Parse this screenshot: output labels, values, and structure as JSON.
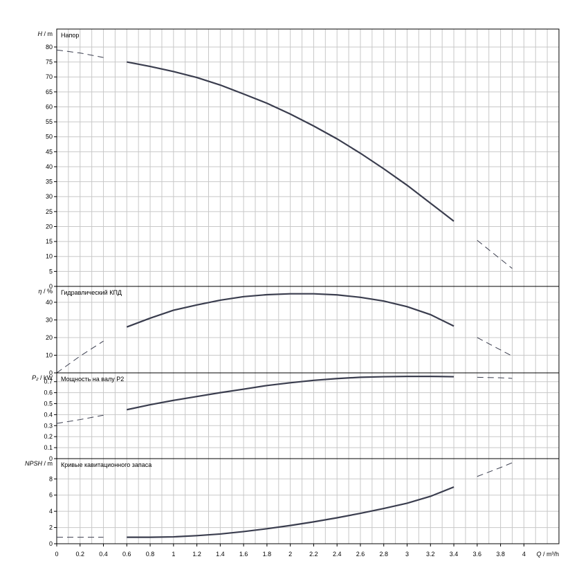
{
  "chart_data": {
    "type": "line",
    "x_axis": {
      "label_var": "Q",
      "label_unit": "m³/h",
      "range": [
        0,
        4.3
      ],
      "tick_labels": [
        "0",
        "0.2",
        "0.4",
        "0.6",
        "0.8",
        "1",
        "1.2",
        "1.4",
        "1.6",
        "1.8",
        "2",
        "2.2",
        "2.4",
        "2.6",
        "2.8",
        "3",
        "3.2",
        "3.4",
        "3.6",
        "3.8",
        "4"
      ],
      "grid_step": 0.1
    },
    "panels": [
      {
        "id": "head",
        "title": "Напор",
        "ylabel_var": "H",
        "ylabel_unit": "m",
        "ylim": [
          0,
          86
        ],
        "y_ticks": [
          0,
          5,
          10,
          15,
          20,
          25,
          30,
          35,
          40,
          45,
          50,
          55,
          60,
          65,
          70,
          75,
          80
        ],
        "solid_range": [
          0.5,
          3.5
        ],
        "points": [
          [
            0,
            79
          ],
          [
            0.2,
            78
          ],
          [
            0.4,
            76.5
          ],
          [
            0.6,
            75
          ],
          [
            0.8,
            73.5
          ],
          [
            1.0,
            71.8
          ],
          [
            1.2,
            69.8
          ],
          [
            1.4,
            67.3
          ],
          [
            1.6,
            64.3
          ],
          [
            1.8,
            61.2
          ],
          [
            2.0,
            57.6
          ],
          [
            2.2,
            53.6
          ],
          [
            2.4,
            49.3
          ],
          [
            2.6,
            44.5
          ],
          [
            2.8,
            39.3
          ],
          [
            3.0,
            33.8
          ],
          [
            3.2,
            27.8
          ],
          [
            3.4,
            21.8
          ],
          [
            3.6,
            15.4
          ],
          [
            3.8,
            9.1
          ],
          [
            3.9,
            6
          ]
        ]
      },
      {
        "id": "efficiency",
        "title": "Гидравлический КПД",
        "ylabel_var": "η",
        "ylabel_unit": "%",
        "ylim": [
          0,
          49
        ],
        "y_ticks": [
          0,
          10,
          20,
          30,
          40
        ],
        "solid_range": [
          0.5,
          3.5
        ],
        "points": [
          [
            0,
            0
          ],
          [
            0.2,
            9.5
          ],
          [
            0.4,
            18
          ],
          [
            0.6,
            26
          ],
          [
            0.8,
            31
          ],
          [
            1.0,
            35.5
          ],
          [
            1.2,
            38.5
          ],
          [
            1.4,
            41.2
          ],
          [
            1.6,
            43.2
          ],
          [
            1.8,
            44.3
          ],
          [
            2.0,
            44.8
          ],
          [
            2.2,
            44.8
          ],
          [
            2.4,
            44.2
          ],
          [
            2.6,
            42.8
          ],
          [
            2.8,
            40.7
          ],
          [
            3.0,
            37.5
          ],
          [
            3.2,
            33
          ],
          [
            3.4,
            26.5
          ],
          [
            3.6,
            20
          ],
          [
            3.8,
            13
          ],
          [
            3.9,
            9.5
          ]
        ]
      },
      {
        "id": "power",
        "title": "Мощность на валу P2",
        "ylabel_var": "P₂",
        "ylabel_unit": "kW",
        "ylim": [
          0,
          0.78
        ],
        "y_ticks": [
          0,
          0.1,
          0.2,
          0.3,
          0.4,
          0.5,
          0.6,
          0.7
        ],
        "y_tick_labels": [
          "0",
          "0.1",
          "0.2",
          "0.3",
          "0.4",
          "0.5",
          "0.6",
          "0.7"
        ],
        "solid_range": [
          0.5,
          3.5
        ],
        "points": [
          [
            0,
            0.32
          ],
          [
            0.2,
            0.355
          ],
          [
            0.4,
            0.395
          ],
          [
            0.6,
            0.445
          ],
          [
            0.8,
            0.49
          ],
          [
            1.0,
            0.53
          ],
          [
            1.2,
            0.565
          ],
          [
            1.4,
            0.6
          ],
          [
            1.6,
            0.632
          ],
          [
            1.8,
            0.665
          ],
          [
            2.0,
            0.69
          ],
          [
            2.2,
            0.712
          ],
          [
            2.4,
            0.728
          ],
          [
            2.6,
            0.74
          ],
          [
            2.8,
            0.745
          ],
          [
            3.0,
            0.748
          ],
          [
            3.2,
            0.748
          ],
          [
            3.4,
            0.745
          ],
          [
            3.6,
            0.74
          ],
          [
            3.8,
            0.735
          ],
          [
            3.9,
            0.73
          ]
        ]
      },
      {
        "id": "npsh",
        "title": "Кривые кавитационного запаса",
        "ylabel_var": "NPSH",
        "ylabel_unit": "m",
        "ylim": [
          0,
          10.5
        ],
        "y_ticks": [
          0,
          2,
          4,
          6,
          8
        ],
        "solid_range": [
          0.5,
          3.5
        ],
        "points": [
          [
            0,
            0.8
          ],
          [
            0.2,
            0.8
          ],
          [
            0.4,
            0.8
          ],
          [
            0.6,
            0.8
          ],
          [
            0.8,
            0.8
          ],
          [
            1.0,
            0.85
          ],
          [
            1.2,
            1.0
          ],
          [
            1.4,
            1.2
          ],
          [
            1.6,
            1.5
          ],
          [
            1.8,
            1.85
          ],
          [
            2.0,
            2.25
          ],
          [
            2.2,
            2.7
          ],
          [
            2.4,
            3.2
          ],
          [
            2.6,
            3.75
          ],
          [
            2.8,
            4.35
          ],
          [
            3.0,
            5.0
          ],
          [
            3.2,
            5.85
          ],
          [
            3.4,
            7.0
          ],
          [
            3.6,
            8.3
          ],
          [
            3.8,
            9.4
          ],
          [
            3.9,
            10.0
          ]
        ]
      }
    ],
    "grid": true,
    "line_color": "#3a3d4e"
  }
}
